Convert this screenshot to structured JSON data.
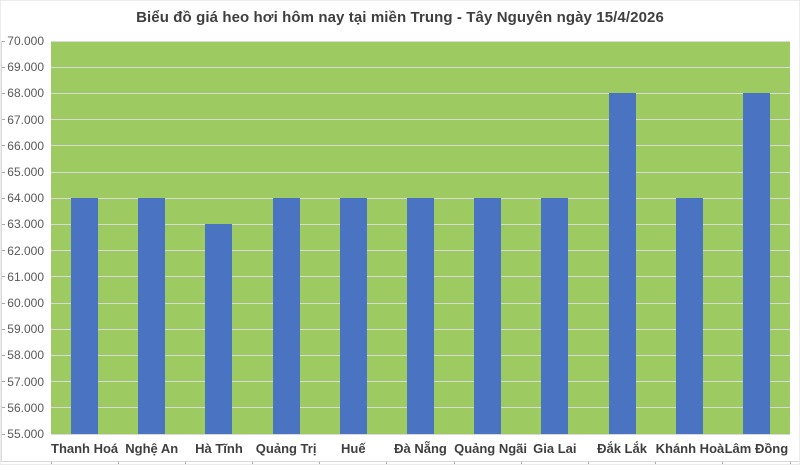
{
  "title": "Biểu đồ giá heo hơi hôm nay tại miền Trung - Tây Nguyên ngày 15/4/2026",
  "colors": {
    "bar": "#4a73c2",
    "plot_background": "#9dcb61",
    "gridline": "#d9d9d9",
    "axis_line": "#d9d9d9",
    "tick_mark": "#a6a6a6",
    "title_text": "#3f3f3f",
    "axis_text": "#595959",
    "category_text": "#3f3f3f"
  },
  "chart_data": {
    "type": "bar",
    "title": "Biểu đồ giá heo hơi hôm nay tại miền Trung - Tây Nguyên ngày 15/4/2026",
    "categories": [
      "Thanh Hoá",
      "Nghệ An",
      "Hà Tĩnh",
      "Quảng Trị",
      "Huế",
      "Đà Nẵng",
      "Quảng Ngãi",
      "Gia Lai",
      "Đắk Lắk",
      "Khánh Hoà",
      "Lâm Đồng"
    ],
    "values": [
      64000,
      64000,
      63000,
      64000,
      64000,
      64000,
      64000,
      64000,
      68000,
      64000,
      68000
    ],
    "xlabel": "",
    "ylabel": "",
    "ylim": [
      55000,
      70000
    ],
    "ytick_step": 1000,
    "ytick_labels": [
      "55.000",
      "56.000",
      "57.000",
      "58.000",
      "59.000",
      "60.000",
      "61.000",
      "62.000",
      "63.000",
      "64.000",
      "65.000",
      "66.000",
      "67.000",
      "68.000",
      "69.000",
      "70.000"
    ],
    "grid": true,
    "legend": false,
    "plot_area_style": "solid green fill, horizontal gridlines"
  }
}
